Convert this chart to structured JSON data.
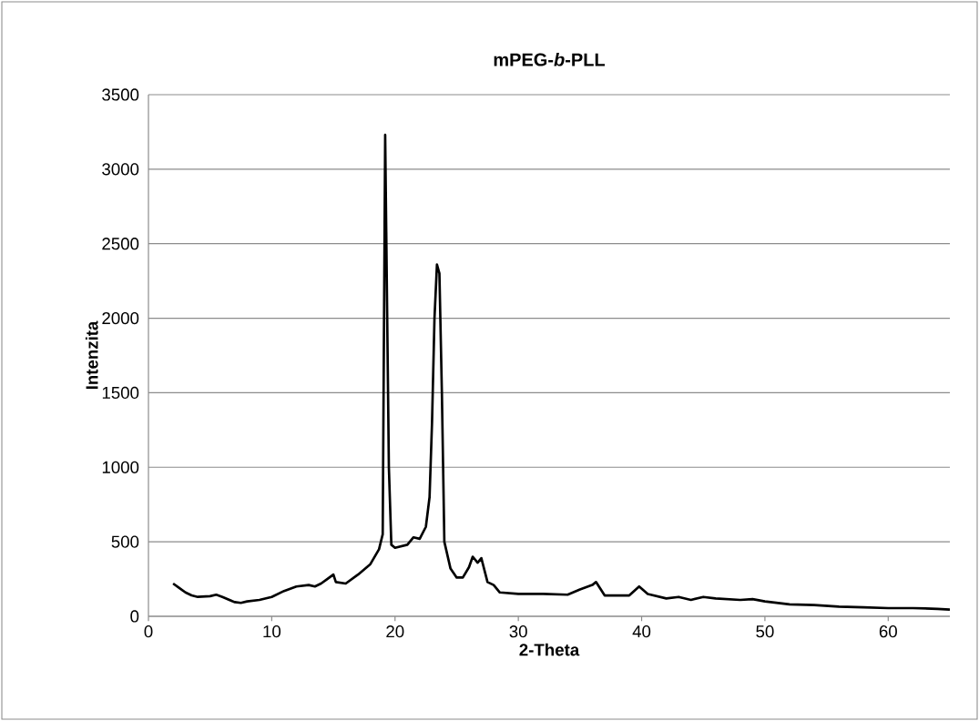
{
  "chart_data": {
    "type": "line",
    "title": "mPEG-*b*-PLL",
    "xlabel": "2-Theta",
    "ylabel": "Intenzita",
    "xlim": [
      0,
      65
    ],
    "ylim": [
      0,
      3500
    ],
    "xticks": [
      0,
      10,
      20,
      30,
      40,
      50,
      60
    ],
    "yticks": [
      0,
      500,
      1000,
      1500,
      2000,
      2500,
      3000,
      3500
    ],
    "grid": "y",
    "series": [
      {
        "color": "#000000",
        "x": [
          2.0,
          2.5,
          3,
          3.5,
          4,
          5,
          5.5,
          6,
          7,
          7.5,
          8,
          9,
          10,
          11,
          12,
          13,
          13.5,
          14,
          14.5,
          15,
          15.2,
          16,
          17,
          18,
          18.7,
          19.0,
          19.2,
          19.5,
          19.7,
          20,
          21,
          21.5,
          22,
          22.5,
          22.8,
          23.0,
          23.2,
          23.4,
          23.6,
          23.8,
          24,
          24.5,
          25,
          25.5,
          26,
          26.3,
          26.7,
          27,
          27.5,
          28,
          28.5,
          30,
          32,
          34,
          35,
          36,
          36.3,
          37,
          38,
          39,
          39.8,
          40.5,
          42,
          43,
          44,
          45,
          46,
          48,
          49,
          50,
          52,
          54,
          56,
          58,
          60,
          62,
          64,
          65
        ],
        "values": [
          220,
          190,
          160,
          140,
          130,
          135,
          145,
          130,
          95,
          90,
          100,
          110,
          130,
          170,
          200,
          210,
          200,
          220,
          250,
          280,
          230,
          220,
          280,
          350,
          450,
          550,
          3230,
          1000,
          480,
          460,
          480,
          530,
          520,
          600,
          800,
          1300,
          2000,
          2360,
          2300,
          1500,
          500,
          320,
          260,
          260,
          330,
          400,
          360,
          390,
          230,
          210,
          160,
          150,
          150,
          145,
          180,
          210,
          230,
          140,
          140,
          140,
          200,
          150,
          120,
          130,
          110,
          130,
          120,
          110,
          115,
          100,
          80,
          75,
          65,
          60,
          55,
          55,
          50,
          45
        ]
      }
    ]
  }
}
